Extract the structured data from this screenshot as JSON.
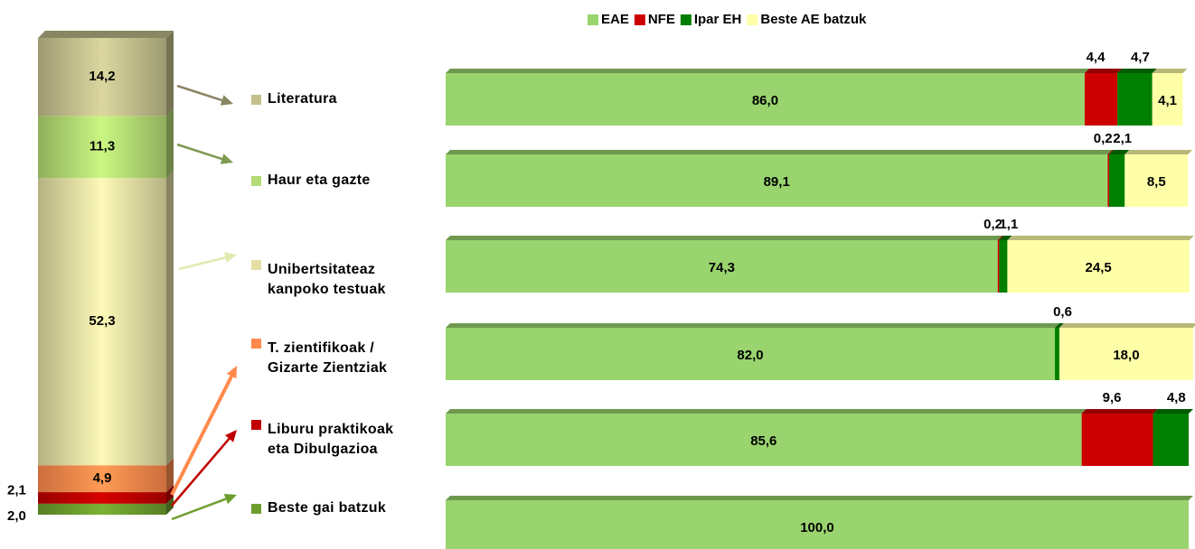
{
  "chart_data": [
    {
      "type": "stacked_column",
      "categories": [
        "Literatura",
        "Haur eta gazte",
        "Unibertsitateaz kanpoko testuak",
        "T. zientifikoak / Gizarte Zientziak",
        "Liburu praktikoak eta Dibulgazioa",
        "Beste gai batzuk"
      ],
      "values": [
        14.2,
        11.3,
        52.3,
        4.9,
        2.1,
        2.0
      ],
      "value_labels": [
        "14,2",
        "11,3",
        "52,3",
        "4,9",
        "2,1",
        "2,0"
      ],
      "colors": [
        "#c4c08e",
        "#b4dc74",
        "#e2dea4",
        "#ff8a4c",
        "#c00000",
        "#6e9e2e"
      ]
    },
    {
      "type": "stacked_bar",
      "xlim": [
        0,
        100
      ],
      "legend": "top",
      "series": [
        {
          "name": "EAE",
          "color": "#99d46e",
          "values": [
            86.0,
            89.1,
            74.3,
            82.0,
            85.6,
            100.0
          ],
          "value_labels": [
            "86,0",
            "89,1",
            "74,3",
            "82,0",
            "85,6",
            "100,0"
          ]
        },
        {
          "name": "NFE",
          "color": "#cc0000",
          "values": [
            4.4,
            0.2,
            0.2,
            null,
            9.6,
            null
          ],
          "value_labels": [
            "4,4",
            "0,2",
            "0,2",
            null,
            "9,6",
            null
          ]
        },
        {
          "name": "Ipar EH",
          "color": "#007f00",
          "values": [
            4.7,
            2.1,
            1.1,
            0.6,
            4.8,
            null
          ],
          "value_labels": [
            "4,7",
            "2,1",
            "1,1",
            "0,6",
            "4,8",
            null
          ]
        },
        {
          "name": "Beste AE batzuk",
          "color": "#ffffa8",
          "values": [
            4.1,
            8.5,
            24.5,
            18.0,
            null,
            null
          ],
          "value_labels": [
            "4,1",
            "8,5",
            "24,5",
            "18,0",
            null,
            null
          ]
        }
      ]
    }
  ]
}
